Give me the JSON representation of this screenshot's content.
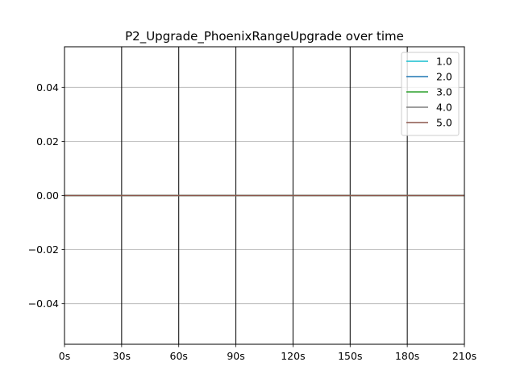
{
  "chart_data": {
    "type": "line",
    "title": "P2_Upgrade_PhoenixRangeUpgrade over time",
    "xlabel": "",
    "ylabel": "",
    "x_range": [
      0,
      210
    ],
    "ylim": [
      -0.055,
      0.055
    ],
    "x_ticks": [
      {
        "value": 0,
        "label": "0s"
      },
      {
        "value": 30,
        "label": "30s"
      },
      {
        "value": 60,
        "label": "60s"
      },
      {
        "value": 90,
        "label": "90s"
      },
      {
        "value": 120,
        "label": "120s"
      },
      {
        "value": 150,
        "label": "150s"
      },
      {
        "value": 180,
        "label": "180s"
      },
      {
        "value": 210,
        "label": "210s"
      }
    ],
    "y_ticks": [
      {
        "value": 0.04,
        "label": "0.04"
      },
      {
        "value": 0.02,
        "label": "0.02"
      },
      {
        "value": 0.0,
        "label": "0.00"
      },
      {
        "value": -0.02,
        "label": "−0.02"
      },
      {
        "value": -0.04,
        "label": "−0.04"
      }
    ],
    "vertical_grid": "black",
    "horizontal_grid": true,
    "legend_position": "top-right",
    "series": [
      {
        "name": "1.0",
        "color": "#17becf",
        "x": [
          0,
          210
        ],
        "values": [
          0,
          0
        ]
      },
      {
        "name": "2.0",
        "color": "#1f77b4",
        "x": [
          0,
          210
        ],
        "values": [
          0,
          0
        ]
      },
      {
        "name": "3.0",
        "color": "#2ca02c",
        "x": [
          0,
          210
        ],
        "values": [
          0,
          0
        ]
      },
      {
        "name": "4.0",
        "color": "#7f7f7f",
        "x": [
          0,
          210
        ],
        "values": [
          0,
          0
        ]
      },
      {
        "name": "5.0",
        "color": "#8c564b",
        "x": [
          0,
          210
        ],
        "values": [
          0,
          0
        ]
      }
    ]
  }
}
